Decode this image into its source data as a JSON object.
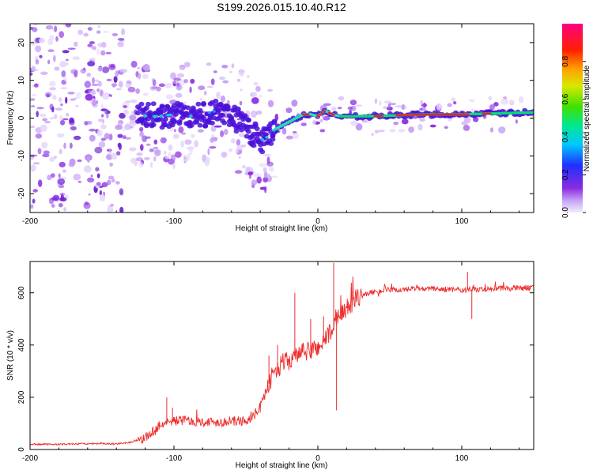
{
  "title": "S199.2026.015.10.40.R12",
  "chart_data": [
    {
      "type": "heatmap",
      "name": "spectrogram",
      "xlabel": "Height of straight line (km)",
      "ylabel": "Frequency (Hz)",
      "xlim": [
        -200,
        150
      ],
      "ylim": [
        -25,
        25
      ],
      "xticks": [
        -200,
        -100,
        0,
        100
      ],
      "xtick_labels": [
        "-200",
        "-100",
        "0",
        "100"
      ],
      "yticks": [
        -20,
        -10,
        0,
        10,
        20
      ],
      "ytick_labels": [
        "-20",
        "-10",
        "0",
        "10",
        "20"
      ],
      "ridge": {
        "description": "dominant frequency vs height",
        "x": [
          -125,
          -110,
          -100,
          -90,
          -80,
          -70,
          -60,
          -50,
          -45,
          -40,
          -35,
          -30,
          -25,
          -20,
          -15,
          -10,
          -5,
          0,
          5,
          10,
          15,
          20,
          30,
          40,
          60,
          80,
          100,
          120,
          150
        ],
        "y": [
          0.5,
          0.5,
          1,
          0.5,
          1,
          2,
          1,
          -2,
          -4,
          -6,
          -5,
          -3,
          -2,
          -1,
          0,
          1,
          1,
          0.5,
          2,
          1,
          0.5,
          0.5,
          0.5,
          0.5,
          0.8,
          1,
          1,
          1.2,
          1.5
        ]
      },
      "colorbar": {
        "label": "Normalized spectral amplitude",
        "range": [
          0,
          1
        ],
        "ticks": [
          0.0,
          0.2,
          0.4,
          0.6,
          0.8
        ],
        "tick_labels": [
          "0.0",
          "0.2",
          "0.4",
          "0.6",
          "0.8"
        ]
      }
    },
    {
      "type": "line",
      "name": "snr",
      "xlabel": "Height of straight line (km)",
      "ylabel": "SNR (10 * v/v)",
      "xlim": [
        -200,
        150
      ],
      "ylim": [
        0,
        720
      ],
      "xticks": [
        -200,
        -100,
        0,
        100
      ],
      "xtick_labels": [
        "-200",
        "-100",
        "0",
        "100"
      ],
      "yticks": [
        0,
        200,
        400,
        600
      ],
      "ytick_labels": [
        "0",
        "200",
        "400",
        "600"
      ],
      "series": [
        {
          "name": "SNR",
          "color": "#ee2c2c",
          "x": [
            -200,
            -180,
            -160,
            -140,
            -130,
            -120,
            -115,
            -110,
            -100,
            -90,
            -80,
            -70,
            -60,
            -50,
            -45,
            -40,
            -35,
            -30,
            -25,
            -20,
            -15,
            -10,
            -5,
            0,
            5,
            10,
            15,
            20,
            25,
            30,
            40,
            50,
            60,
            70,
            80,
            100,
            120,
            150
          ],
          "y": [
            20,
            20,
            22,
            22,
            28,
            45,
            65,
            95,
            110,
            112,
            105,
            105,
            108,
            110,
            125,
            160,
            240,
            300,
            330,
            340,
            360,
            370,
            380,
            390,
            420,
            460,
            500,
            540,
            570,
            590,
            605,
            610,
            612,
            615,
            615,
            610,
            615,
            620
          ]
        }
      ],
      "spikes": [
        {
          "x": -105,
          "y": 200
        },
        {
          "x": -101,
          "y": 160
        },
        {
          "x": -34,
          "y": 360
        },
        {
          "x": -28,
          "y": 400
        },
        {
          "x": -16,
          "y": 600
        },
        {
          "x": -5,
          "y": 500
        },
        {
          "x": 4,
          "y": 510
        },
        {
          "x": 11,
          "y": 715
        },
        {
          "x": 13,
          "y": 150
        },
        {
          "x": 104,
          "y": 680
        },
        {
          "x": 107,
          "y": 500
        }
      ]
    }
  ]
}
